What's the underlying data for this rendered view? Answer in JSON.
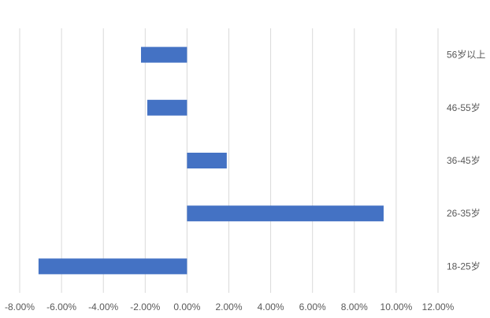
{
  "chart_data": {
    "type": "bar",
    "orientation": "horizontal",
    "categories": [
      "18-25岁",
      "26-35岁",
      "36-45岁",
      "46-55岁",
      "56岁以上"
    ],
    "values": [
      -7.1,
      9.4,
      1.9,
      -1.9,
      -2.2
    ],
    "value_unit": "%",
    "title": "",
    "xlabel": "",
    "ylabel": "",
    "xlim": [
      -8,
      12
    ],
    "xtick_labels": [
      "-8.00%",
      "-6.00%",
      "-4.00%",
      "-2.00%",
      "0.00%",
      "2.00%",
      "4.00%",
      "6.00%",
      "8.00%",
      "10.00%",
      "12.00%"
    ],
    "category_axis_position": "right",
    "grid": "vertical",
    "legend": "none",
    "colors": {
      "bar": "#4472C4",
      "grid": "#D9D9D9",
      "text": "#595959"
    }
  }
}
